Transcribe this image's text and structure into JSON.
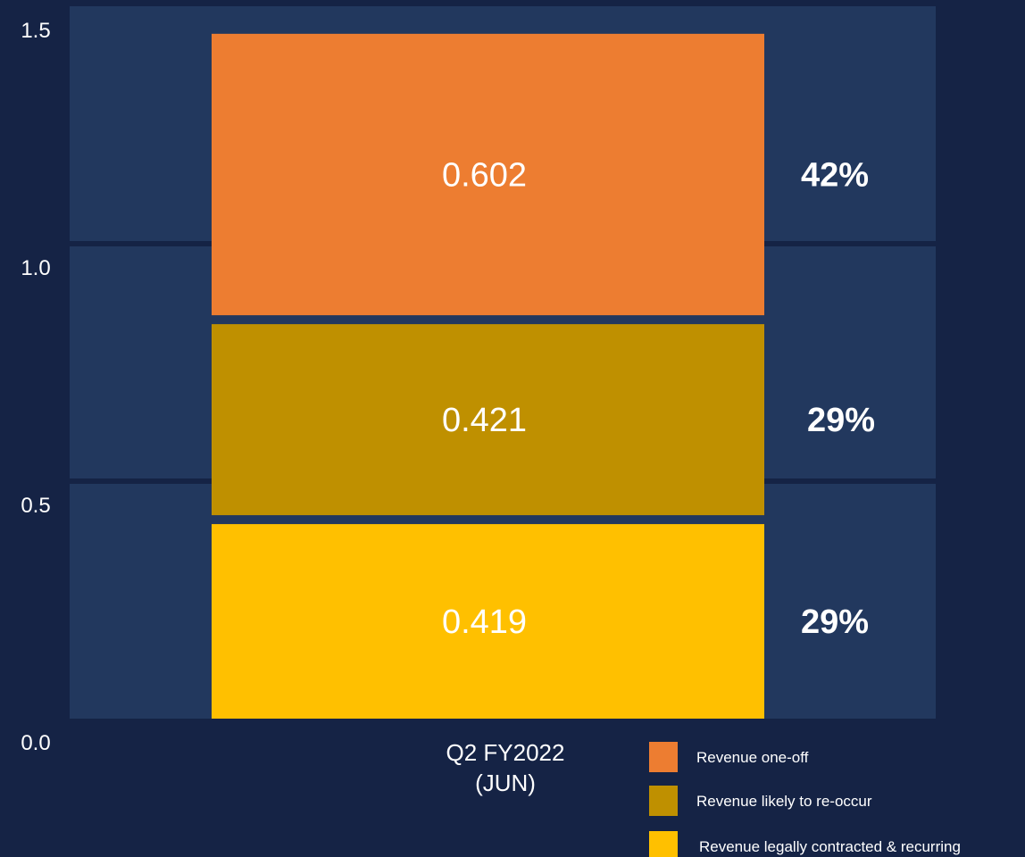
{
  "chart_data": {
    "type": "bar",
    "stacked": true,
    "categories": [
      "Q2 FY2022 (JUN)"
    ],
    "category_label_lines": [
      "Q2 FY2022",
      "(JUN)"
    ],
    "series": [
      {
        "name": "Revenue legally contracted & recurring",
        "values": [
          0.419
        ],
        "value_label": "0.419",
        "share_label": "29%",
        "color": "#FFC000"
      },
      {
        "name": "Revenue likely to re-occur",
        "values": [
          0.421
        ],
        "value_label": "0.421",
        "share_label": "29%",
        "color": "#BF9000"
      },
      {
        "name": "Revenue one-off",
        "values": [
          0.602
        ],
        "value_label": "0.602",
        "share_label": "42%",
        "color": "#ED7D31"
      }
    ],
    "legend_order": [
      "Revenue one-off",
      "Revenue likely to re-occur",
      "Revenue legally contracted & recurring"
    ],
    "y_ticks": [
      "0.0",
      "0.5",
      "1.0",
      "1.5"
    ],
    "ylim": [
      0,
      1.5
    ],
    "grid": true,
    "legend_position": "bottom-right",
    "colors": {
      "background": "#152345",
      "plot_area": "#22385E",
      "text": "#FFFFFF"
    }
  }
}
